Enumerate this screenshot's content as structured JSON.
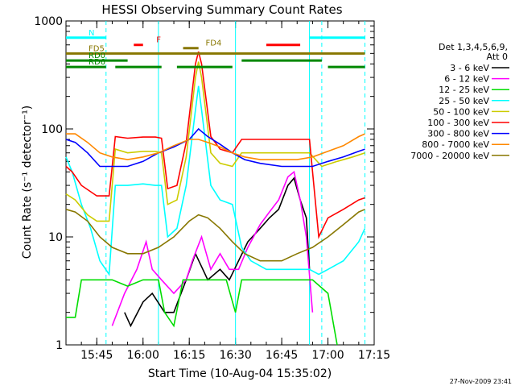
{
  "chart_data": {
    "type": "line",
    "title": "HESSI Observing Summary Count Rates",
    "xlabel": "Start Time (10-Aug-04 15:35:02)",
    "ylabel": "Count Rate (s⁻¹ detector⁻¹)",
    "y_scale": "log",
    "ylim": [
      1,
      1000
    ],
    "xlim": [
      "15:35",
      "17:15"
    ],
    "x_ticks": [
      "15:45",
      "16:00",
      "16:15",
      "16:30",
      "16:45",
      "17:00",
      "17:15"
    ],
    "y_ticks": [
      "1",
      "10",
      "100",
      "1000"
    ],
    "legend_title": [
      "Det 1,3,4,5,6,9,",
      "Att 0"
    ],
    "legend_position": "right",
    "footer": "27-Nov-2009 23:41",
    "series": [
      {
        "name": "3 - 6 keV",
        "color": "#000000",
        "points": [
          [
            "15:54",
            2
          ],
          [
            "15:56",
            1.5
          ],
          [
            "16:00",
            2.5
          ],
          [
            "16:03",
            3
          ],
          [
            "16:07",
            2
          ],
          [
            "16:10",
            2
          ],
          [
            "16:14",
            4
          ],
          [
            "16:17",
            7
          ],
          [
            "16:21",
            4
          ],
          [
            "16:25",
            5
          ],
          [
            "16:28",
            4
          ],
          [
            "16:31",
            6
          ],
          [
            "16:34",
            9
          ],
          [
            "16:38",
            12
          ],
          [
            "16:41",
            15
          ],
          [
            "16:44",
            18
          ],
          [
            "16:47",
            30
          ],
          [
            "16:49",
            35
          ],
          [
            "16:51",
            22
          ],
          [
            "16:53",
            15
          ],
          [
            "16:54",
            5
          ]
        ]
      },
      {
        "name": "6 - 12 keV",
        "color": "#ff00ff",
        "points": [
          [
            "15:50",
            1.5
          ],
          [
            "15:54",
            3
          ],
          [
            "15:58",
            5
          ],
          [
            "16:01",
            9
          ],
          [
            "16:03",
            5
          ],
          [
            "16:06",
            4
          ],
          [
            "16:10",
            3
          ],
          [
            "16:14",
            4
          ],
          [
            "16:16",
            6
          ],
          [
            "16:19",
            10
          ],
          [
            "16:22",
            5
          ],
          [
            "16:25",
            7
          ],
          [
            "16:28",
            5
          ],
          [
            "16:31",
            5
          ],
          [
            "16:34",
            8
          ],
          [
            "16:38",
            13
          ],
          [
            "16:41",
            17
          ],
          [
            "16:44",
            22
          ],
          [
            "16:47",
            36
          ],
          [
            "16:49",
            40
          ],
          [
            "16:51",
            22
          ],
          [
            "16:53",
            10
          ],
          [
            "16:55",
            2
          ]
        ]
      },
      {
        "name": "12 - 25 keV",
        "color": "#00dd00",
        "points": [
          [
            "15:35",
            1.8
          ],
          [
            "15:38",
            1.8
          ],
          [
            "15:40",
            4
          ],
          [
            "15:45",
            4
          ],
          [
            "15:50",
            4
          ],
          [
            "15:55",
            3.5
          ],
          [
            "16:00",
            4
          ],
          [
            "16:05",
            4
          ],
          [
            "16:07",
            2
          ],
          [
            "16:10",
            1.5
          ],
          [
            "16:13",
            4
          ],
          [
            "16:17",
            4
          ],
          [
            "16:22",
            4
          ],
          [
            "16:27",
            4
          ],
          [
            "16:30",
            2
          ],
          [
            "16:32",
            4
          ],
          [
            "16:38",
            4
          ],
          [
            "16:44",
            4
          ],
          [
            "16:50",
            4
          ],
          [
            "16:55",
            4
          ],
          [
            "17:00",
            3
          ],
          [
            "17:03",
            1
          ]
        ]
      },
      {
        "name": "25 - 50 keV",
        "color": "#00ffff",
        "points": [
          [
            "15:35",
            55
          ],
          [
            "15:37",
            40
          ],
          [
            "15:40",
            20
          ],
          [
            "15:43",
            12
          ],
          [
            "15:46",
            6
          ],
          [
            "15:49",
            4.5
          ],
          [
            "15:51",
            30
          ],
          [
            "15:55",
            30
          ],
          [
            "16:00",
            31
          ],
          [
            "16:04",
            30
          ],
          [
            "16:06",
            30
          ],
          [
            "16:08",
            10
          ],
          [
            "16:11",
            12
          ],
          [
            "16:14",
            30
          ],
          [
            "16:17",
            150
          ],
          [
            "16:18",
            250
          ],
          [
            "16:19",
            150
          ],
          [
            "16:22",
            30
          ],
          [
            "16:25",
            22
          ],
          [
            "16:29",
            20
          ],
          [
            "16:32",
            8
          ],
          [
            "16:35",
            6
          ],
          [
            "16:40",
            5
          ],
          [
            "16:45",
            5
          ],
          [
            "16:50",
            5
          ],
          [
            "16:54",
            5
          ],
          [
            "16:57",
            4.5
          ],
          [
            "17:00",
            5
          ],
          [
            "17:05",
            6
          ],
          [
            "17:10",
            9
          ],
          [
            "17:12",
            12
          ]
        ]
      },
      {
        "name": "50 - 100 keV",
        "color": "#cccc00",
        "points": [
          [
            "15:35",
            25
          ],
          [
            "15:38",
            22
          ],
          [
            "15:42",
            16
          ],
          [
            "15:45",
            14
          ],
          [
            "15:49",
            14
          ],
          [
            "15:51",
            65
          ],
          [
            "15:55",
            60
          ],
          [
            "16:00",
            62
          ],
          [
            "16:04",
            62
          ],
          [
            "16:06",
            60
          ],
          [
            "16:08",
            20
          ],
          [
            "16:11",
            22
          ],
          [
            "16:14",
            55
          ],
          [
            "16:17",
            300
          ],
          [
            "16:18",
            420
          ],
          [
            "16:19",
            300
          ],
          [
            "16:22",
            60
          ],
          [
            "16:25",
            48
          ],
          [
            "16:29",
            45
          ],
          [
            "16:32",
            60
          ],
          [
            "16:38",
            60
          ],
          [
            "16:44",
            60
          ],
          [
            "16:50",
            60
          ],
          [
            "16:54",
            60
          ],
          [
            "16:58",
            45
          ],
          [
            "17:03",
            50
          ],
          [
            "17:08",
            55
          ],
          [
            "17:12",
            60
          ]
        ]
      },
      {
        "name": "100 - 300 keV",
        "color": "#ff0000",
        "points": [
          [
            "15:35",
            45
          ],
          [
            "15:37",
            40
          ],
          [
            "15:40",
            30
          ],
          [
            "15:45",
            24
          ],
          [
            "15:49",
            24
          ],
          [
            "15:51",
            85
          ],
          [
            "15:55",
            82
          ],
          [
            "16:00",
            84
          ],
          [
            "16:04",
            84
          ],
          [
            "16:06",
            82
          ],
          [
            "16:08",
            28
          ],
          [
            "16:11",
            30
          ],
          [
            "16:14",
            75
          ],
          [
            "16:17",
            400
          ],
          [
            "16:18",
            520
          ],
          [
            "16:19",
            400
          ],
          [
            "16:22",
            85
          ],
          [
            "16:25",
            65
          ],
          [
            "16:29",
            60
          ],
          [
            "16:32",
            80
          ],
          [
            "16:38",
            80
          ],
          [
            "16:44",
            80
          ],
          [
            "16:50",
            80
          ],
          [
            "16:54",
            80
          ],
          [
            "16:57",
            10
          ],
          [
            "17:00",
            15
          ],
          [
            "17:05",
            18
          ],
          [
            "17:10",
            22
          ],
          [
            "17:12",
            23
          ]
        ]
      },
      {
        "name": "300 - 800 keV",
        "color": "#0000ff",
        "points": [
          [
            "15:35",
            80
          ],
          [
            "15:38",
            75
          ],
          [
            "15:42",
            60
          ],
          [
            "15:46",
            45
          ],
          [
            "15:50",
            45
          ],
          [
            "15:55",
            45
          ],
          [
            "16:00",
            50
          ],
          [
            "16:05",
            60
          ],
          [
            "16:10",
            68
          ],
          [
            "16:15",
            80
          ],
          [
            "16:18",
            100
          ],
          [
            "16:21",
            85
          ],
          [
            "16:25",
            72
          ],
          [
            "16:29",
            60
          ],
          [
            "16:33",
            52
          ],
          [
            "16:38",
            48
          ],
          [
            "16:45",
            45
          ],
          [
            "16:50",
            45
          ],
          [
            "16:55",
            45
          ],
          [
            "17:00",
            50
          ],
          [
            "17:05",
            55
          ],
          [
            "17:10",
            62
          ],
          [
            "17:12",
            65
          ]
        ]
      },
      {
        "name": "800 - 7000 keV",
        "color": "#ff8800",
        "points": [
          [
            "15:35",
            90
          ],
          [
            "15:38",
            90
          ],
          [
            "15:42",
            75
          ],
          [
            "15:46",
            60
          ],
          [
            "15:50",
            55
          ],
          [
            "15:55",
            52
          ],
          [
            "16:00",
            55
          ],
          [
            "16:05",
            60
          ],
          [
            "16:10",
            70
          ],
          [
            "16:15",
            80
          ],
          [
            "16:18",
            80
          ],
          [
            "16:21",
            75
          ],
          [
            "16:25",
            68
          ],
          [
            "16:29",
            60
          ],
          [
            "16:33",
            55
          ],
          [
            "16:38",
            52
          ],
          [
            "16:45",
            52
          ],
          [
            "16:50",
            52
          ],
          [
            "16:55",
            55
          ],
          [
            "17:00",
            62
          ],
          [
            "17:05",
            70
          ],
          [
            "17:10",
            85
          ],
          [
            "17:12",
            90
          ]
        ]
      },
      {
        "name": "7000 - 20000 keV",
        "color": "#887700",
        "points": [
          [
            "15:35",
            18
          ],
          [
            "15:38",
            17
          ],
          [
            "15:42",
            14
          ],
          [
            "15:46",
            10
          ],
          [
            "15:50",
            8
          ],
          [
            "15:55",
            7
          ],
          [
            "16:00",
            7
          ],
          [
            "16:05",
            8
          ],
          [
            "16:10",
            10
          ],
          [
            "16:15",
            14
          ],
          [
            "16:18",
            16
          ],
          [
            "16:21",
            15
          ],
          [
            "16:25",
            12
          ],
          [
            "16:29",
            9
          ],
          [
            "16:33",
            7
          ],
          [
            "16:38",
            6
          ],
          [
            "16:45",
            6
          ],
          [
            "16:50",
            7
          ],
          [
            "16:55",
            8
          ],
          [
            "17:00",
            10
          ],
          [
            "17:05",
            13
          ],
          [
            "17:10",
            17
          ],
          [
            "17:12",
            18
          ]
        ]
      }
    ],
    "segments": [
      {
        "label": "N",
        "label_color": "#00ffff",
        "color": "#00ffff",
        "y": 700,
        "ranges": [
          [
            "15:35",
            "15:48"
          ],
          [
            "16:54",
            "17:12"
          ]
        ]
      },
      {
        "label": "F",
        "label_color": "#ff0000",
        "color": "#ff0000",
        "y": 600,
        "ranges": [
          [
            "15:57",
            "16:00"
          ],
          [
            "16:40",
            "16:51"
          ]
        ]
      },
      {
        "label": "FD4",
        "label_color": "#887700",
        "color": "#887700",
        "y": 560,
        "ranges": [
          [
            "16:13",
            "16:18"
          ]
        ]
      },
      {
        "label": "FD5",
        "label_color": "#887700",
        "color": "#887700",
        "y": 500,
        "ranges": [
          [
            "15:35",
            "17:12"
          ]
        ]
      },
      {
        "label": "RD0",
        "label_color": "#008800",
        "color": "#008800",
        "y": 430,
        "ranges": [
          [
            "15:35",
            "15:55"
          ],
          [
            "16:32",
            "16:58"
          ]
        ]
      },
      {
        "label": "RD6",
        "label_color": "#008800",
        "color": "#008800",
        "y": 375,
        "ranges": [
          [
            "15:35",
            "15:48"
          ],
          [
            "15:51",
            "16:06"
          ],
          [
            "16:11",
            "16:29"
          ],
          [
            "17:00",
            "17:12"
          ]
        ]
      }
    ],
    "vertical_markers": [
      {
        "time": "15:48",
        "color": "#00ffff",
        "style": "dashed"
      },
      {
        "time": "16:05",
        "color": "#00ffff",
        "style": "solid"
      },
      {
        "time": "16:30",
        "color": "#00ffff",
        "style": "solid"
      },
      {
        "time": "16:54",
        "color": "#00ffff",
        "style": "solid"
      },
      {
        "time": "16:58",
        "color": "#00ffff",
        "style": "dashed"
      },
      {
        "time": "17:12",
        "color": "#00ffff",
        "style": "dashed"
      }
    ]
  }
}
